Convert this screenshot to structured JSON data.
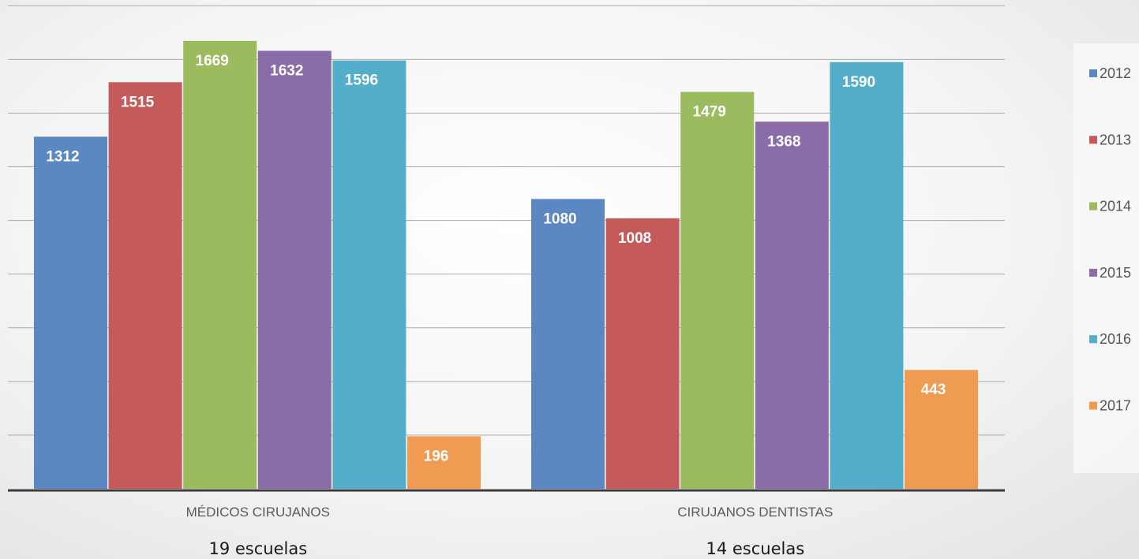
{
  "chart_data": {
    "type": "bar",
    "title": "",
    "xlabel": "",
    "ylabel": "",
    "categories": [
      "MÉDICOS CIRUJANOS",
      "CIRUJANOS DENTISTAS"
    ],
    "category_sublabels": [
      "19 escuelas",
      "14 escuelas"
    ],
    "series": [
      {
        "name": "2012",
        "color": "#5b87c3",
        "values": [
          1312,
          1080
        ]
      },
      {
        "name": "2013",
        "color": "#c45a5a",
        "values": [
          1515,
          1008
        ]
      },
      {
        "name": "2014",
        "color": "#9cbb5e",
        "values": [
          1669,
          1479
        ]
      },
      {
        "name": "2015",
        "color": "#8a6ca9",
        "values": [
          1632,
          1368
        ]
      },
      {
        "name": "2016",
        "color": "#52aec9",
        "values": [
          1596,
          1590
        ]
      },
      {
        "name": "2017",
        "color": "#f09b52",
        "values": [
          196,
          443
        ]
      }
    ],
    "ylim": [
      0,
      1800
    ],
    "gridlines": [
      200,
      400,
      600,
      800,
      1000,
      1200,
      1400,
      1600,
      1800
    ],
    "grid": true,
    "data_labels": true,
    "legend": "right"
  }
}
